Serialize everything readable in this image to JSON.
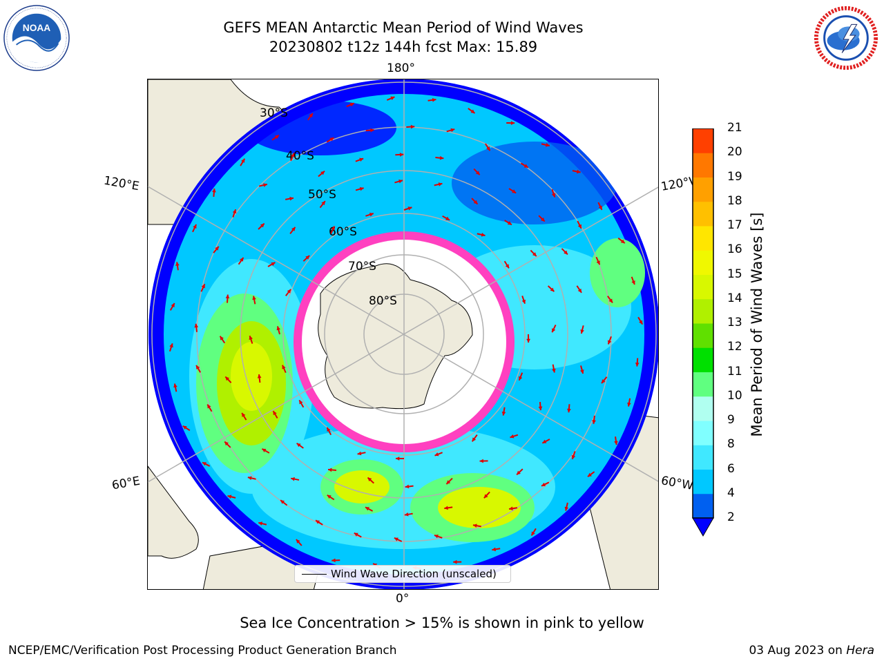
{
  "header": {
    "title_line1": "GEFS MEAN Antarctic Mean Period of Wind Waves",
    "title_line2": "20230802 t12z 144h fcst   Max: 15.89"
  },
  "logos": {
    "noaa": {
      "icon": "noaa-logo",
      "text": "NOAA"
    },
    "nws": {
      "icon": "national-weather-service-logo",
      "text": "NATIONAL WEATHER SERVICE"
    }
  },
  "map": {
    "projection": "south-polar-stereographic",
    "longitude_labels": {
      "top": "180°",
      "bottom": "0°",
      "left_upper": "120°E",
      "left_lower": "60°E",
      "right_upper": "120°W",
      "right_lower": "60°W"
    },
    "latitude_labels": [
      "30°S",
      "40°S",
      "50°S",
      "60°S",
      "70°S",
      "80°S"
    ],
    "colors": {
      "land": "#eeebdc",
      "coastline": "#000000",
      "graticule": "#b0b0b0",
      "arrows": "#e00000",
      "sea_ice": "#ff40c0"
    },
    "legend": {
      "label": "Wind Wave Direction (unscaled)"
    }
  },
  "colorbar": {
    "label": "Mean Period of Wind Waves [s]",
    "ticks": [
      "2",
      "4",
      "6",
      "8",
      "9",
      "10",
      "11",
      "12",
      "13",
      "14",
      "15",
      "16",
      "17",
      "18",
      "19",
      "20",
      "21"
    ],
    "colors": [
      "#0060f0",
      "#00c8ff",
      "#40e8ff",
      "#80ffff",
      "#b0fff0",
      "#60ff80",
      "#00e000",
      "#60e000",
      "#b0f000",
      "#d8f800",
      "#f0f800",
      "#ffe600",
      "#ffc000",
      "#ffa000",
      "#ff7800",
      "#ff4000",
      "#ff0000"
    ],
    "underflow_color": "#0000ff"
  },
  "note": "Sea Ice Concentration > 15% is shown in pink to yellow",
  "footer": {
    "left": "NCEP/EMC/Verification Post Processing Product Generation Branch",
    "right_date": "03 Aug 2023 on ",
    "right_host": "Hera"
  }
}
